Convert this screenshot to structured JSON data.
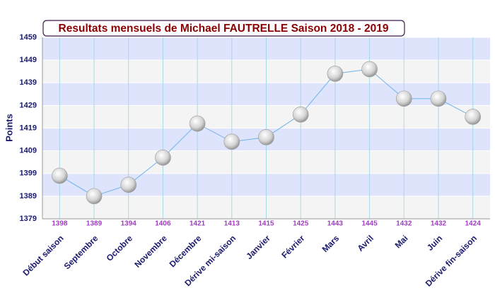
{
  "chart_data": {
    "type": "line",
    "title": "Resultats mensuels de Michael FAUTRELLE Saison 2018 - 2019",
    "y_label": "Points",
    "categories": [
      "Début saison",
      "Septembre",
      "Octobre",
      "Novembre",
      "Décembre",
      "Dérive mi-saison",
      "Janvier",
      "Février",
      "Mars",
      "Avril",
      "Mai",
      "Juin",
      "Dérive fin-saison"
    ],
    "values": [
      1398,
      1389,
      1394,
      1406,
      1421,
      1413,
      1415,
      1425,
      1443,
      1445,
      1432,
      1432,
      1424
    ],
    "color": "#6fb3e8",
    "ylim": [
      1379,
      1459
    ],
    "yticks": [
      1379,
      1389,
      1399,
      1409,
      1419,
      1429,
      1439,
      1449,
      1459
    ],
    "grid": true
  }
}
